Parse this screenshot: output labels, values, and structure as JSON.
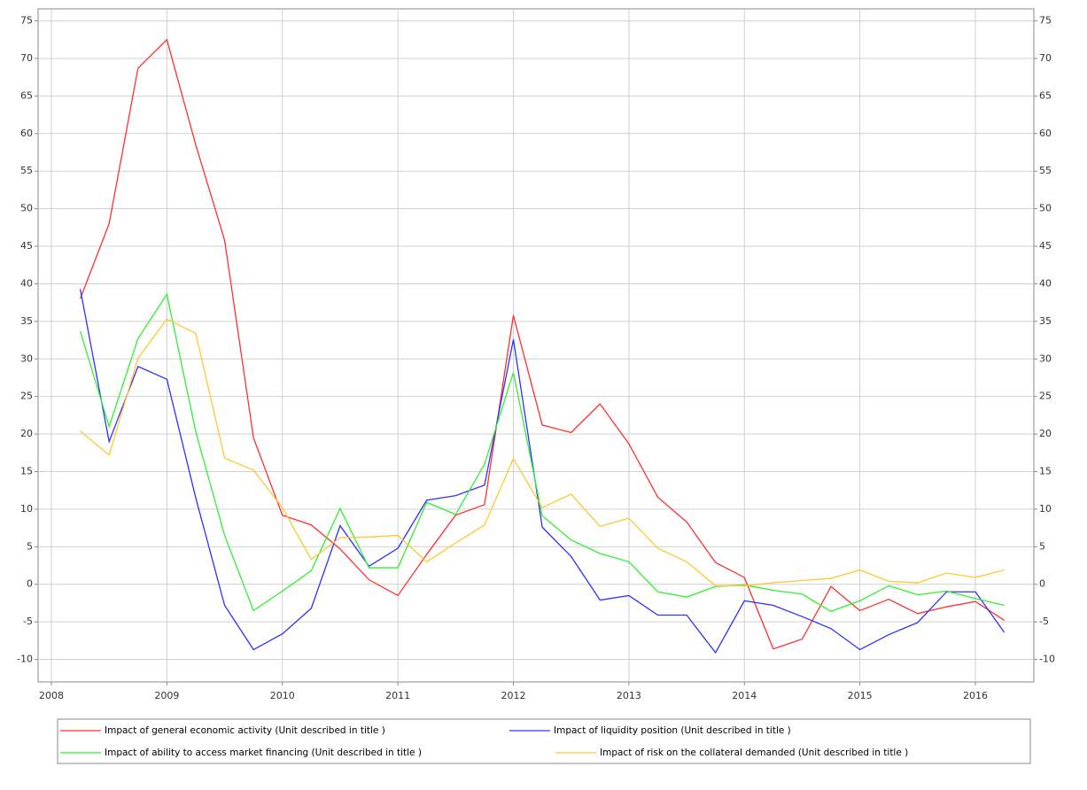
{
  "chart_data": {
    "type": "line",
    "x": [
      2008.25,
      2008.5,
      2008.75,
      2009,
      2009.25,
      2009.5,
      2009.75,
      2010,
      2010.25,
      2010.5,
      2010.75,
      2011,
      2011.25,
      2011.5,
      2011.75,
      2012,
      2012.25,
      2012.5,
      2012.75,
      2013,
      2013.25,
      2013.5,
      2013.75,
      2014,
      2014.25,
      2014.5,
      2014.75,
      2015,
      2015.25,
      2015.5,
      2015.75,
      2016,
      2016.25
    ],
    "series": [
      {
        "name": "Impact of general economic activity (Unit described in title )",
        "color": "#ff3030",
        "values": [
          38,
          48,
          68.7,
          72.5,
          58.5,
          45.8,
          19.5,
          9.2,
          7.9,
          4.7,
          0.6,
          -1.5,
          4,
          9.2,
          10.6,
          35.8,
          21.2,
          20.2,
          24,
          18.7,
          11.6,
          8.3,
          2.9,
          0.9,
          -8.6,
          -7.3,
          -0.3,
          -3.5,
          -2,
          -3.9,
          -3,
          -2.3,
          -4.8
        ]
      },
      {
        "name": "Impact of liquidity position (Unit described in title )",
        "color": "#3030ff",
        "values": [
          39.3,
          19,
          29,
          27.3,
          11.5,
          -2.8,
          -8.7,
          -6.6,
          -3.2,
          7.8,
          2.4,
          4.8,
          11.2,
          11.8,
          13.2,
          32.6,
          7.6,
          3.7,
          -2.1,
          -1.5,
          -4.1,
          -4.1,
          -9.1,
          -2.2,
          -2.8,
          -4.3,
          -5.9,
          -8.7,
          -6.7,
          -5.1,
          -1,
          -1,
          -6.4
        ]
      },
      {
        "name": "Impact of ability to access market financing (Unit described in title )",
        "color": "#30f030",
        "values": [
          33.7,
          21,
          32.7,
          38.6,
          20.3,
          6.5,
          -3.5,
          -0.9,
          1.8,
          10.1,
          2.2,
          2.2,
          10.9,
          9.3,
          16,
          28.2,
          9.1,
          5.9,
          4.1,
          3,
          -1,
          -1.7,
          -0.3,
          -0.1,
          -0.8,
          -1.3,
          -3.6,
          -2.2,
          -0.2,
          -1.4,
          -0.9,
          -1.9,
          -2.8
        ]
      },
      {
        "name": "Impact of risk on the collateral demanded (Unit described in title )",
        "color": "#ffc830",
        "values": [
          20.4,
          17.2,
          30.1,
          35.3,
          33.4,
          16.8,
          15.2,
          10.2,
          3.3,
          6.2,
          6.3,
          6.5,
          3,
          5.5,
          7.9,
          16.7,
          10.2,
          12,
          7.7,
          8.8,
          4.8,
          3,
          -0.2,
          -0.2,
          0.2,
          0.5,
          0.8,
          1.9,
          0.4,
          0.2,
          1.5,
          0.9,
          1.9
        ]
      }
    ],
    "xlim": [
      2007.885,
      2016.506
    ],
    "xticks": [
      2008,
      2009,
      2010,
      2011,
      2012,
      2013,
      2014,
      2015,
      2016
    ],
    "ylim": [
      -13,
      76.6
    ],
    "yticks": [
      -10,
      -5,
      0,
      5,
      10,
      15,
      20,
      25,
      30,
      35,
      40,
      45,
      50,
      55,
      60,
      65,
      70,
      75
    ],
    "grid": true
  }
}
